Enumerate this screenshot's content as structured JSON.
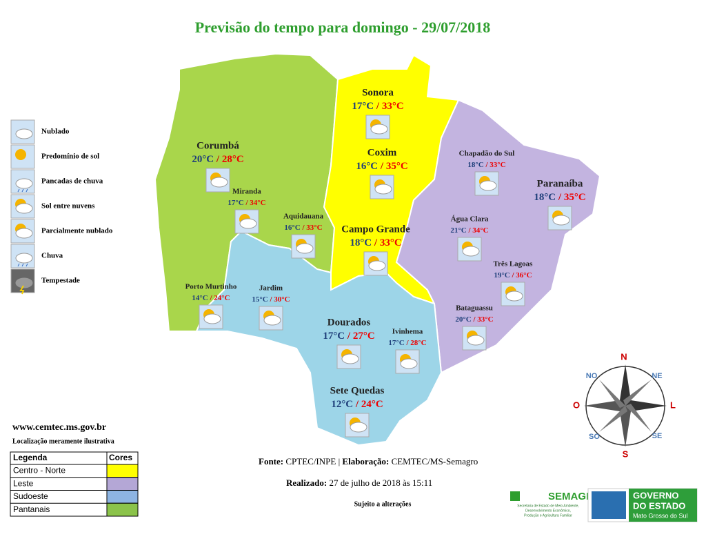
{
  "title": "Previsão do tempo para domingo - 29/07/2018",
  "icon_legend": [
    "Nublado",
    "Predomínio de sol",
    "Pancadas de chuva",
    "Sol entre nuvens",
    "Parcialmente nublado",
    "Chuva",
    "Tempestade"
  ],
  "separator": "/",
  "cities": [
    {
      "name": "Sonora",
      "min": "17°C",
      "max": "33°C"
    },
    {
      "name": "Corumbá",
      "min": "20°C",
      "max": "28°C"
    },
    {
      "name": "Coxim",
      "min": "16°C",
      "max": "35°C"
    },
    {
      "name": "Chapadão do Sul",
      "min": "18°C",
      "max": "33°C"
    },
    {
      "name": "Paranaíba",
      "min": "18°C",
      "max": "35°C"
    },
    {
      "name": "Miranda",
      "min": "17°C",
      "max": "34°C"
    },
    {
      "name": "Aquidauana",
      "min": "16°C",
      "max": "33°C"
    },
    {
      "name": "Campo Grande",
      "min": "18°C",
      "max": "33°C"
    },
    {
      "name": "Água Clara",
      "min": "21°C",
      "max": "34°C"
    },
    {
      "name": "Três Lagoas",
      "min": "19°C",
      "max": "36°C"
    },
    {
      "name": "Porto Murtinho",
      "min": "14°C",
      "max": "24°C"
    },
    {
      "name": "Jardim",
      "min": "15°C",
      "max": "30°C"
    },
    {
      "name": "Bataguassu",
      "min": "20°C",
      "max": "33°C"
    },
    {
      "name": "Dourados",
      "min": "17°C",
      "max": "27°C"
    },
    {
      "name": "Ivinhema",
      "min": "17°C",
      "max": "28°C"
    },
    {
      "name": "Sete Quedas",
      "min": "12°C",
      "max": "24°C"
    }
  ],
  "website": "www.cemtec.ms.gov.br",
  "note": "Localização meramente ilustrativa",
  "regions_table": {
    "header": [
      "Legenda",
      "Cores"
    ],
    "rows": [
      "Centro - Norte",
      "Leste",
      "Sudoeste",
      "Pantanais"
    ]
  },
  "source": {
    "label": "Fonte:",
    "text": "CPTEC/INPE |",
    "label2": "Elaboração:",
    "text2": "CEMTEC/MS-Semagro"
  },
  "made": {
    "label": "Realizado:",
    "text": "27 de julho de 2018 às 15:11"
  },
  "disclaimer": "Sujeito a alterações",
  "compass": [
    "N",
    "NE",
    "L",
    "SE",
    "S",
    "SO",
    "O",
    "NO"
  ],
  "logos": {
    "semagro": "SEMAGRO",
    "semagro_sub": [
      "Secretaria de Estado de Meio Ambiente,",
      "Desenvolvimento Econômico,",
      "Produção e Agricultura Familiar"
    ],
    "gov": [
      "GOVERNO",
      "DO ESTADO",
      "Mato Grosso do Sul"
    ]
  }
}
